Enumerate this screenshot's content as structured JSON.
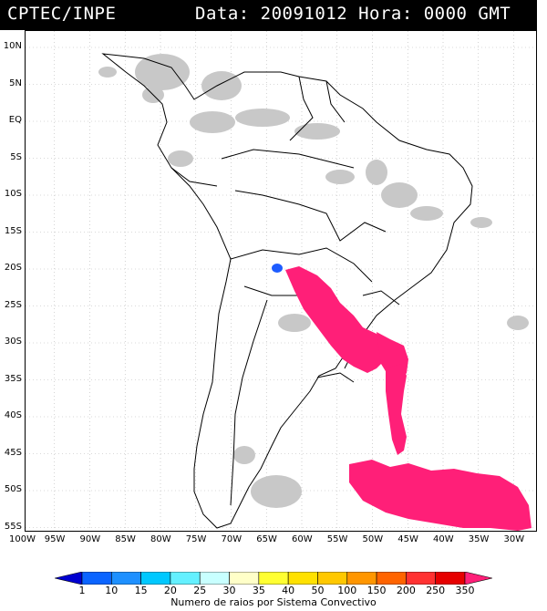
{
  "header": {
    "source": "CPTEC/INPE",
    "datetime": "Data: 20091012 Hora: 0000 GMT"
  },
  "map": {
    "lat_labels": [
      "10N",
      "5N",
      "EQ",
      "5S",
      "10S",
      "15S",
      "20S",
      "25S",
      "30S",
      "35S",
      "40S",
      "45S",
      "50S",
      "55S"
    ],
    "lat_values": [
      10,
      5,
      0,
      -5,
      -10,
      -15,
      -20,
      -25,
      -30,
      -35,
      -40,
      -45,
      -50,
      -55
    ],
    "lon_labels": [
      "100W",
      "95W",
      "90W",
      "85W",
      "80W",
      "75W",
      "70W",
      "65W",
      "60W",
      "55W",
      "50W",
      "45W",
      "40W",
      "35W",
      "30W"
    ],
    "lon_values": [
      -100,
      -95,
      -90,
      -85,
      -80,
      -75,
      -70,
      -65,
      -60,
      -55,
      -50,
      -45,
      -40,
      -35,
      -30
    ],
    "colors": {
      "cloud": "#c8c8c8",
      "land_line": "#000000",
      "convective_max": "#ff1f78",
      "convective_min": "#1e5cff"
    }
  },
  "colorbar": {
    "labels": [
      "1",
      "10",
      "15",
      "20",
      "25",
      "30",
      "35",
      "40",
      "50",
      "100",
      "150",
      "200",
      "250",
      "350"
    ],
    "colors": [
      "#0000d0",
      "#0a64ff",
      "#1e90ff",
      "#00c8ff",
      "#64f0ff",
      "#c8ffff",
      "#ffffc8",
      "#ffff32",
      "#ffe100",
      "#ffc800",
      "#ff9600",
      "#ff6400",
      "#ff3232",
      "#e60000",
      "#ff1f78"
    ],
    "title": "Numero de raios por Sistema Convectivo"
  }
}
